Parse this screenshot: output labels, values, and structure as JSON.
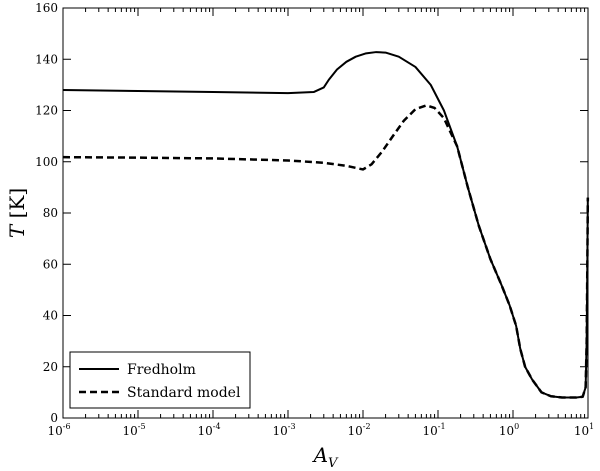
{
  "chart_data": {
    "type": "line",
    "xscale": "log",
    "xlim": [
      1e-06,
      10
    ],
    "ylim": [
      0,
      160
    ],
    "grid": false,
    "legend_position": "bottom-left",
    "x_ticks": [
      {
        "value": 1e-06,
        "base": "10",
        "exp": "-6"
      },
      {
        "value": 1e-05,
        "base": "10",
        "exp": "-5"
      },
      {
        "value": 0.0001,
        "base": "10",
        "exp": "-4"
      },
      {
        "value": 0.001,
        "base": "10",
        "exp": "-3"
      },
      {
        "value": 0.01,
        "base": "10",
        "exp": "-2"
      },
      {
        "value": 0.1,
        "base": "10",
        "exp": "-1"
      },
      {
        "value": 1,
        "base": "10",
        "exp": "0"
      },
      {
        "value": 10,
        "base": "10",
        "exp": "1"
      }
    ],
    "y_ticks": [
      0,
      20,
      40,
      60,
      80,
      100,
      120,
      140,
      160
    ],
    "xlabel": {
      "main": "A",
      "sub": "V"
    },
    "ylabel": {
      "var": "T",
      "unit": "[K]"
    },
    "series": [
      {
        "name": "Fredholm",
        "style": "solid",
        "color": "#000000",
        "points": [
          [
            1e-06,
            128
          ],
          [
            1e-05,
            127.6
          ],
          [
            0.0001,
            127.2
          ],
          [
            0.001,
            126.8
          ],
          [
            0.0022,
            127.2
          ],
          [
            0.003,
            129
          ],
          [
            0.0035,
            132
          ],
          [
            0.0045,
            136
          ],
          [
            0.006,
            139
          ],
          [
            0.008,
            141
          ],
          [
            0.011,
            142.3
          ],
          [
            0.015,
            142.8
          ],
          [
            0.02,
            142.6
          ],
          [
            0.03,
            141
          ],
          [
            0.05,
            137
          ],
          [
            0.08,
            130
          ],
          [
            0.12,
            120
          ],
          [
            0.18,
            106
          ],
          [
            0.25,
            90
          ],
          [
            0.35,
            75
          ],
          [
            0.5,
            62
          ],
          [
            0.7,
            52
          ],
          [
            0.9,
            44
          ],
          [
            1.1,
            36
          ],
          [
            1.25,
            27
          ],
          [
            1.45,
            20
          ],
          [
            1.8,
            15
          ],
          [
            2.4,
            10
          ],
          [
            3.2,
            8.5
          ],
          [
            4.5,
            8
          ],
          [
            7,
            8
          ],
          [
            8.5,
            8.3
          ],
          [
            9.3,
            12
          ],
          [
            9.6,
            30
          ],
          [
            9.8,
            60
          ],
          [
            9.95,
            86
          ]
        ]
      },
      {
        "name": "Standard model",
        "style": "dashed",
        "color": "#000000",
        "points": [
          [
            1e-06,
            101.8
          ],
          [
            1e-05,
            101.6
          ],
          [
            0.0001,
            101.3
          ],
          [
            0.001,
            100.5
          ],
          [
            0.003,
            99.6
          ],
          [
            0.006,
            98.4
          ],
          [
            0.01,
            97
          ],
          [
            0.013,
            99
          ],
          [
            0.018,
            104
          ],
          [
            0.025,
            110
          ],
          [
            0.035,
            116
          ],
          [
            0.05,
            120.5
          ],
          [
            0.07,
            122
          ],
          [
            0.09,
            121
          ],
          [
            0.12,
            117
          ],
          [
            0.18,
            106
          ],
          [
            0.25,
            90
          ],
          [
            0.35,
            75
          ],
          [
            0.5,
            62
          ],
          [
            0.7,
            52
          ],
          [
            0.9,
            44
          ],
          [
            1.1,
            36
          ],
          [
            1.25,
            27
          ],
          [
            1.45,
            20
          ],
          [
            1.8,
            15
          ],
          [
            2.4,
            10
          ],
          [
            3.2,
            8.5
          ],
          [
            4.5,
            8
          ],
          [
            7,
            8
          ],
          [
            8.5,
            8.3
          ],
          [
            9.3,
            12
          ],
          [
            9.6,
            30
          ],
          [
            9.8,
            60
          ],
          [
            9.95,
            86
          ]
        ]
      }
    ]
  }
}
